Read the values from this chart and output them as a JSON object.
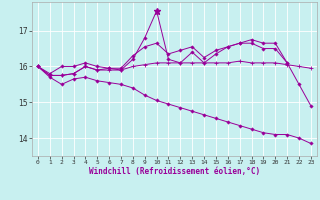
{
  "xlabel": "Windchill (Refroidissement éolien,°C)",
  "background_color": "#c8f0f0",
  "line_color": "#990099",
  "grid_color": "#ffffff",
  "xlim": [
    -0.5,
    23.5
  ],
  "ylim": [
    13.5,
    17.8
  ],
  "yticks": [
    14,
    15,
    16,
    17
  ],
  "xticks": [
    0,
    1,
    2,
    3,
    4,
    5,
    6,
    7,
    8,
    9,
    10,
    11,
    12,
    13,
    14,
    15,
    16,
    17,
    18,
    19,
    20,
    21,
    22,
    23
  ],
  "series1_x": [
    0,
    1,
    2,
    3,
    4,
    5,
    6,
    7,
    8,
    9,
    10,
    11,
    12,
    13,
    14,
    15,
    16,
    17,
    18,
    19,
    20,
    21
  ],
  "series1_y": [
    16.0,
    15.8,
    16.0,
    16.0,
    16.1,
    16.0,
    15.95,
    15.95,
    16.3,
    16.55,
    16.65,
    16.35,
    16.45,
    16.55,
    16.25,
    16.45,
    16.55,
    16.65,
    16.75,
    16.65,
    16.65,
    16.1
  ],
  "series2_x": [
    0,
    1,
    2,
    3,
    4,
    5,
    6,
    7,
    8,
    9,
    10,
    11,
    12,
    13,
    14,
    15,
    16,
    17,
    18,
    19,
    20,
    21,
    22,
    23
  ],
  "series2_y": [
    16.0,
    15.75,
    15.75,
    15.8,
    16.0,
    15.9,
    15.95,
    15.9,
    16.2,
    16.8,
    17.55,
    16.2,
    16.1,
    16.4,
    16.1,
    16.35,
    16.55,
    16.65,
    16.65,
    16.5,
    16.5,
    16.1,
    15.5,
    14.9
  ],
  "series3_x": [
    0,
    1,
    2,
    3,
    4,
    5,
    6,
    7,
    8,
    9,
    10,
    11,
    12,
    13,
    14,
    15,
    16,
    17,
    18,
    19,
    20,
    21,
    22,
    23
  ],
  "series3_y": [
    16.0,
    15.75,
    15.75,
    15.8,
    16.0,
    15.9,
    15.9,
    15.9,
    16.0,
    16.05,
    16.1,
    16.1,
    16.1,
    16.1,
    16.1,
    16.1,
    16.1,
    16.15,
    16.1,
    16.1,
    16.1,
    16.05,
    16.0,
    15.95
  ],
  "series4_x": [
    0,
    1,
    2,
    3,
    4,
    5,
    6,
    7,
    8,
    9,
    10,
    11,
    12,
    13,
    14,
    15,
    16,
    17,
    18,
    19,
    20,
    21,
    22,
    23
  ],
  "series4_y": [
    16.0,
    15.7,
    15.5,
    15.65,
    15.7,
    15.6,
    15.55,
    15.5,
    15.4,
    15.2,
    15.05,
    14.95,
    14.85,
    14.75,
    14.65,
    14.55,
    14.45,
    14.35,
    14.25,
    14.15,
    14.1,
    14.1,
    14.0,
    13.85
  ]
}
